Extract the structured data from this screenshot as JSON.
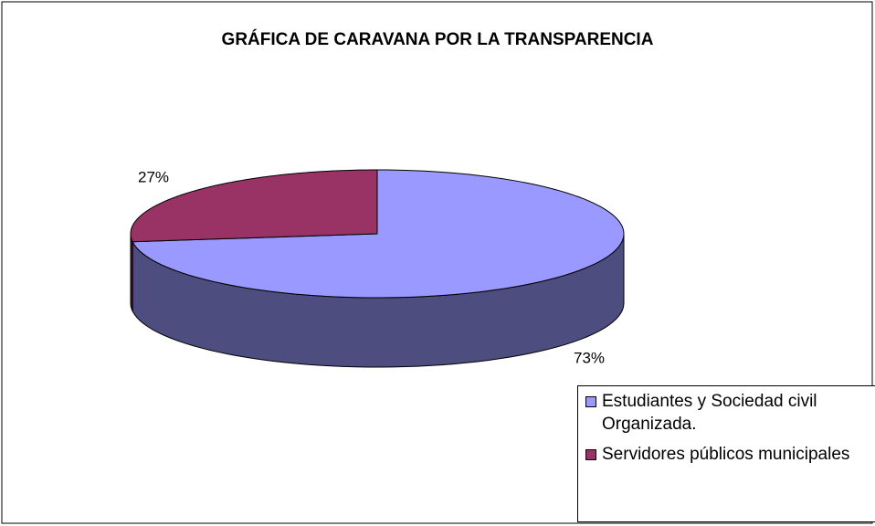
{
  "chart_data": {
    "type": "pie",
    "title": "GRÁFICA DE CARAVANA POR LA TRANSPARENCIA",
    "categories": [
      "Estudiantes y Sociedad civil Organizada.",
      "Servidores públicos municipales"
    ],
    "values": [
      73,
      27
    ],
    "value_labels": [
      "73%",
      "27%"
    ],
    "colors": [
      "#9999ff",
      "#993366"
    ],
    "legend": "bottom-right"
  }
}
